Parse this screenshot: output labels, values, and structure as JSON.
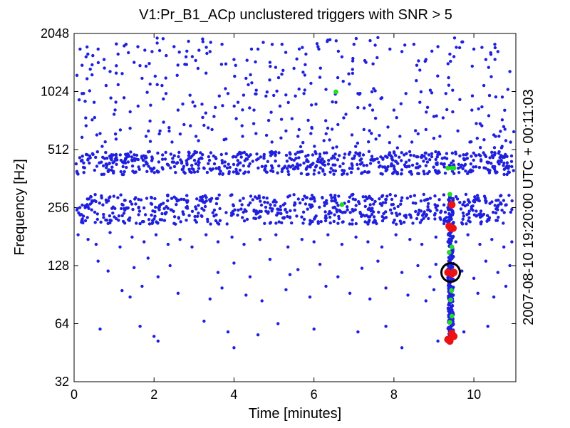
{
  "chart_data": {
    "type": "scatter",
    "title": "V1:Pr_B1_ACp unclustered triggers with SNR > 5",
    "xlabel": "Time [minutes]",
    "ylabel": "Frequency [Hz]",
    "right_label": "2007-08-10 19:20:00 UTC + 00:11:03",
    "xlim": [
      0,
      11.05
    ],
    "ylim": [
      32,
      2048
    ],
    "y_scale": "log2",
    "x_ticks": [
      0,
      2,
      4,
      6,
      8,
      10
    ],
    "y_ticks": [
      32,
      64,
      128,
      256,
      512,
      1024,
      2048
    ],
    "grid": false,
    "legend": "none",
    "colors": {
      "low_snr": "#1f1fe0",
      "mid_snr": "#22dd22",
      "high_snr": "#ee1111",
      "marker_ring": "#000000"
    },
    "series_dense_bands": [
      {
        "x_range": [
          0.05,
          11.0
        ],
        "f_range": [
          210,
          300
        ],
        "color_key": "low_snr"
      },
      {
        "x_range": [
          0.05,
          11.0
        ],
        "f_range": [
          380,
          500
        ],
        "color_key": "low_snr"
      }
    ],
    "series_low": [
      [
        0.15,
        1700
      ],
      [
        0.2,
        1400
      ],
      [
        0.3,
        1550
      ],
      [
        0.45,
        1250
      ],
      [
        0.6,
        1700
      ],
      [
        0.75,
        1500
      ],
      [
        0.9,
        1300
      ],
      [
        1.1,
        1600
      ],
      [
        1.3,
        1800
      ],
      [
        1.5,
        1450
      ],
      [
        1.7,
        1200
      ],
      [
        1.95,
        1650
      ],
      [
        2.2,
        1100
      ],
      [
        2.5,
        1750
      ],
      [
        2.8,
        1550
      ],
      [
        3.1,
        1350
      ],
      [
        3.4,
        1650
      ],
      [
        3.7,
        1800
      ],
      [
        4.0,
        1500
      ],
      [
        4.3,
        1200
      ],
      [
        4.6,
        1700
      ],
      [
        4.9,
        1450
      ],
      [
        5.2,
        1800
      ],
      [
        5.5,
        1350
      ],
      [
        5.8,
        1600
      ],
      [
        6.1,
        1750
      ],
      [
        6.4,
        1900
      ],
      [
        6.7,
        1550
      ],
      [
        7.0,
        1800
      ],
      [
        7.3,
        1450
      ],
      [
        7.6,
        1950
      ],
      [
        7.9,
        1700
      ],
      [
        8.2,
        1650
      ],
      [
        8.5,
        1800
      ],
      [
        8.8,
        1500
      ],
      [
        9.1,
        1750
      ],
      [
        9.4,
        1600
      ],
      [
        9.7,
        1850
      ],
      [
        10.0,
        1700
      ],
      [
        10.3,
        1500
      ],
      [
        10.6,
        1650
      ],
      [
        10.9,
        1300
      ],
      [
        0.2,
        1000
      ],
      [
        0.5,
        900
      ],
      [
        0.8,
        1100
      ],
      [
        1.0,
        780
      ],
      [
        1.25,
        950
      ],
      [
        1.6,
        860
      ],
      [
        1.9,
        720
      ],
      [
        2.3,
        1000
      ],
      [
        2.6,
        820
      ],
      [
        2.9,
        980
      ],
      [
        3.2,
        880
      ],
      [
        3.5,
        760
      ],
      [
        3.85,
        1000
      ],
      [
        4.1,
        900
      ],
      [
        4.5,
        820
      ],
      [
        4.8,
        970
      ],
      [
        5.15,
        860
      ],
      [
        5.45,
        740
      ],
      [
        5.75,
        1000
      ],
      [
        6.05,
        880
      ],
      [
        6.3,
        1050
      ],
      [
        6.55,
        900
      ],
      [
        6.8,
        780
      ],
      [
        7.1,
        1000
      ],
      [
        7.4,
        870
      ],
      [
        7.7,
        950
      ],
      [
        8.0,
        820
      ],
      [
        8.3,
        1000
      ],
      [
        8.65,
        900
      ],
      [
        9.0,
        760
      ],
      [
        9.3,
        1000
      ],
      [
        9.65,
        930
      ],
      [
        9.95,
        820
      ],
      [
        10.25,
        1100
      ],
      [
        10.55,
        960
      ],
      [
        10.85,
        1050
      ],
      [
        0.3,
        680
      ],
      [
        0.65,
        620
      ],
      [
        1.05,
        580
      ],
      [
        1.4,
        660
      ],
      [
        1.8,
        600
      ],
      [
        2.15,
        640
      ],
      [
        2.45,
        560
      ],
      [
        2.75,
        690
      ],
      [
        3.05,
        600
      ],
      [
        3.45,
        650
      ],
      [
        3.8,
        580
      ],
      [
        4.2,
        680
      ],
      [
        4.55,
        620
      ],
      [
        4.95,
        560
      ],
      [
        5.3,
        640
      ],
      [
        5.6,
        600
      ],
      [
        5.95,
        660
      ],
      [
        6.25,
        570
      ],
      [
        6.6,
        690
      ],
      [
        6.95,
        610
      ],
      [
        7.25,
        650
      ],
      [
        7.55,
        580
      ],
      [
        7.85,
        670
      ],
      [
        8.15,
        600
      ],
      [
        8.45,
        560
      ],
      [
        8.8,
        650
      ],
      [
        9.15,
        600
      ],
      [
        9.6,
        640
      ],
      [
        9.9,
        560
      ],
      [
        10.2,
        680
      ],
      [
        10.5,
        610
      ],
      [
        10.8,
        570
      ],
      [
        0.1,
        185
      ],
      [
        0.35,
        175
      ],
      [
        0.55,
        165
      ],
      [
        0.9,
        190
      ],
      [
        1.15,
        160
      ],
      [
        1.45,
        180
      ],
      [
        1.75,
        170
      ],
      [
        2.05,
        185
      ],
      [
        2.35,
        165
      ],
      [
        2.65,
        175
      ],
      [
        2.95,
        160
      ],
      [
        3.3,
        185
      ],
      [
        3.6,
        170
      ],
      [
        3.95,
        180
      ],
      [
        4.25,
        165
      ],
      [
        4.65,
        175
      ],
      [
        5.05,
        185
      ],
      [
        5.35,
        160
      ],
      [
        5.7,
        175
      ],
      [
        6.0,
        170
      ],
      [
        6.35,
        185
      ],
      [
        6.7,
        165
      ],
      [
        7.05,
        180
      ],
      [
        7.35,
        170
      ],
      [
        7.7,
        160
      ],
      [
        8.05,
        185
      ],
      [
        8.4,
        175
      ],
      [
        8.7,
        165
      ],
      [
        9.05,
        180
      ],
      [
        9.55,
        170
      ],
      [
        9.85,
        185
      ],
      [
        10.15,
        165
      ],
      [
        10.45,
        175
      ],
      [
        10.75,
        160
      ],
      [
        10.95,
        170
      ],
      [
        0.6,
        135
      ],
      [
        0.85,
        120
      ],
      [
        1.5,
        125
      ],
      [
        1.85,
        140
      ],
      [
        2.1,
        112
      ],
      [
        2.4,
        128
      ],
      [
        3.6,
        118
      ],
      [
        4.0,
        132
      ],
      [
        4.4,
        112
      ],
      [
        4.9,
        138
      ],
      [
        5.4,
        115
      ],
      [
        5.6,
        122
      ],
      [
        6.15,
        130
      ],
      [
        6.6,
        112
      ],
      [
        7.2,
        124
      ],
      [
        7.6,
        135
      ],
      [
        8.2,
        118
      ],
      [
        8.6,
        128
      ],
      [
        8.9,
        112
      ],
      [
        9.05,
        130
      ],
      [
        9.7,
        120
      ],
      [
        10.0,
        110
      ],
      [
        10.3,
        135
      ],
      [
        10.6,
        118
      ],
      [
        10.9,
        128
      ],
      [
        1.2,
        95
      ],
      [
        1.4,
        88
      ],
      [
        1.7,
        100
      ],
      [
        2.6,
        92
      ],
      [
        3.4,
        86
      ],
      [
        3.7,
        98
      ],
      [
        4.3,
        90
      ],
      [
        4.7,
        84
      ],
      [
        5.3,
        96
      ],
      [
        5.9,
        88
      ],
      [
        6.3,
        100
      ],
      [
        6.9,
        92
      ],
      [
        7.4,
        86
      ],
      [
        7.8,
        98
      ],
      [
        8.35,
        90
      ],
      [
        8.8,
        84
      ],
      [
        9.0,
        96
      ],
      [
        10.1,
        92
      ],
      [
        10.5,
        88
      ],
      [
        10.8,
        100
      ],
      [
        0.65,
        60
      ],
      [
        1.65,
        62
      ],
      [
        2.0,
        55
      ],
      [
        3.25,
        66
      ],
      [
        3.85,
        58
      ],
      [
        4.6,
        56
      ],
      [
        5.1,
        64
      ],
      [
        6.0,
        60
      ],
      [
        7.1,
        58
      ],
      [
        7.8,
        62
      ],
      [
        9.75,
        58
      ],
      [
        10.35,
        62
      ],
      [
        2.1,
        52
      ],
      [
        4.0,
        48
      ],
      [
        8.2,
        48
      ],
      [
        9.1,
        52
      ]
    ],
    "series_vertical_line": {
      "x": 9.42,
      "f_range": [
        55,
        290
      ],
      "color_key": "low_snr"
    },
    "series_mid": [
      [
        6.55,
        1020
      ],
      [
        6.7,
        265
      ],
      [
        9.35,
        410
      ],
      [
        9.45,
        410
      ],
      [
        9.4,
        300
      ],
      [
        9.45,
        160
      ],
      [
        9.38,
        150
      ],
      [
        9.42,
        85
      ],
      [
        9.45,
        70
      ],
      [
        9.4,
        65
      ],
      [
        9.44,
        95
      ],
      [
        9.5,
        410
      ]
    ],
    "series_high": [
      [
        9.45,
        265
      ],
      [
        9.38,
        205
      ],
      [
        9.42,
        200
      ],
      [
        9.48,
        200
      ],
      [
        9.35,
        118
      ],
      [
        9.45,
        116
      ],
      [
        9.5,
        118
      ],
      [
        9.4,
        52
      ],
      [
        9.5,
        55
      ],
      [
        9.45,
        57
      ],
      [
        9.35,
        53
      ]
    ],
    "highlight_ring": {
      "x": 9.42,
      "f": 118
    }
  }
}
